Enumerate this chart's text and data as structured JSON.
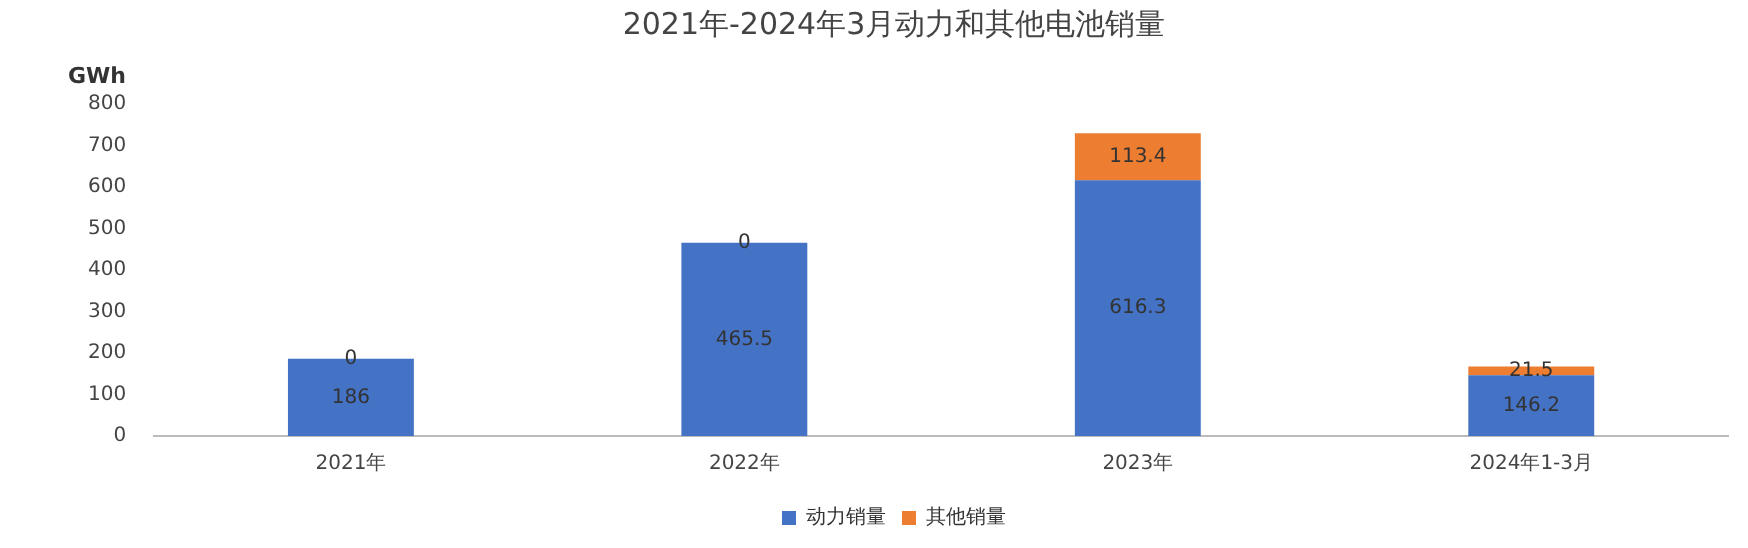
{
  "chart_data": {
    "type": "bar",
    "title": "2021年-2024年3月动力和其他电池销量",
    "ylabel": "GWh",
    "categories": [
      "2021年",
      "2022年",
      "2023年",
      "2024年1-3月"
    ],
    "series": [
      {
        "name": "动力销量",
        "color": "#4472c4",
        "values": [
          186,
          465.5,
          616.3,
          146.2
        ]
      },
      {
        "name": "其他销量",
        "color": "#ed7d31",
        "values": [
          0,
          0,
          113.4,
          21.5
        ]
      }
    ],
    "stacked": true,
    "ylim": [
      0,
      800
    ],
    "yticks": [
      0,
      100,
      200,
      300,
      400,
      500,
      600,
      700,
      800
    ],
    "grid": false,
    "legend": "bottom",
    "data_labels": true
  }
}
